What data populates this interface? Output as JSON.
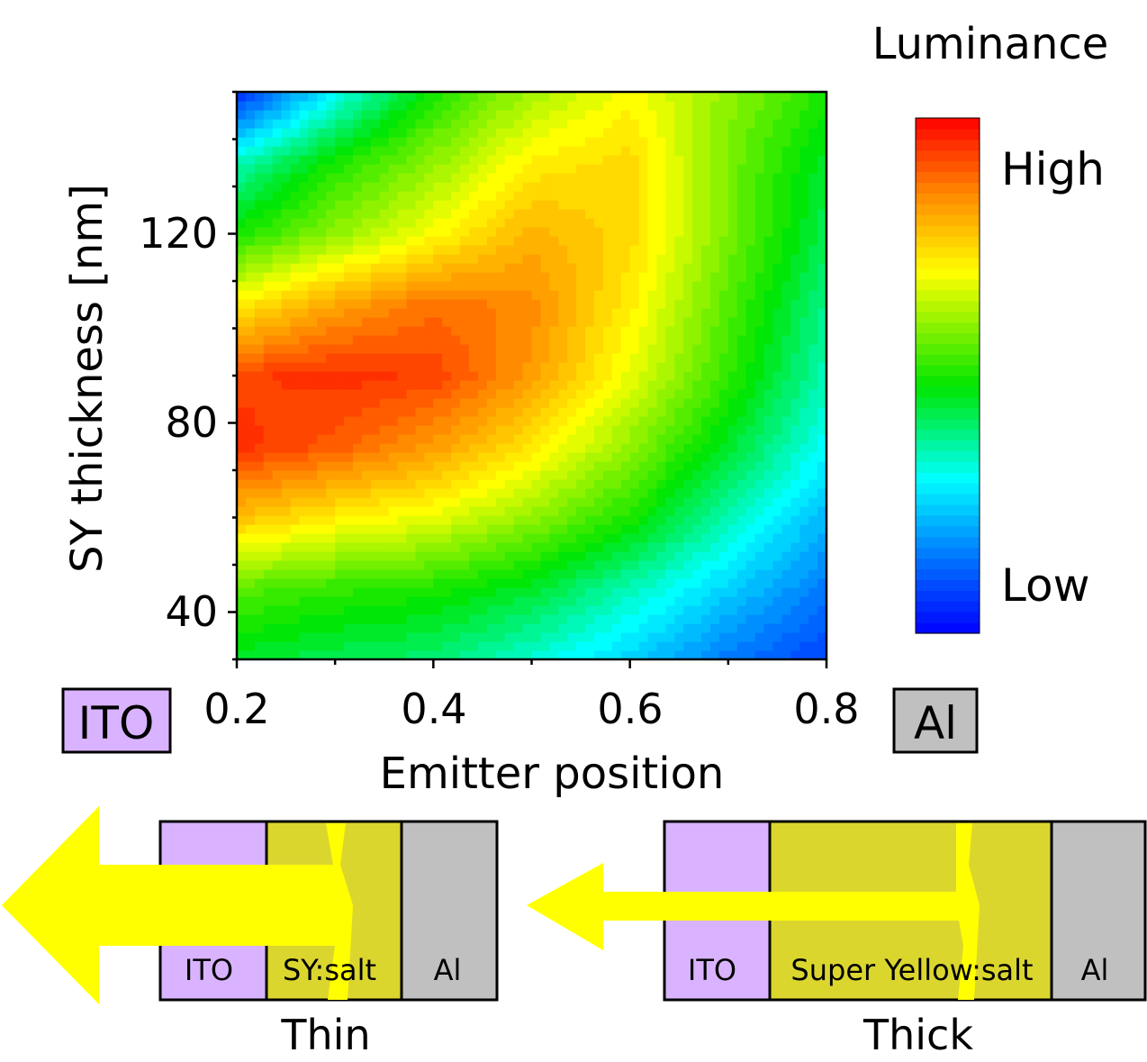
{
  "chart_data": {
    "type": "heatmap",
    "title": "",
    "colorbar_title": "Luminance",
    "colorbar_high": "High",
    "colorbar_low": "Low",
    "xlabel": "Emitter position",
    "ylabel": "SY thickness [nm]",
    "xlim": [
      0.2,
      0.8
    ],
    "ylim": [
      30,
      150
    ],
    "xticks": [
      "0.2",
      "0.4",
      "0.6",
      "0.8"
    ],
    "yticks": [
      "40",
      "80",
      "120"
    ],
    "x": [
      0.2,
      0.3,
      0.4,
      0.5,
      0.6,
      0.7,
      0.8
    ],
    "y": [
      30,
      45,
      60,
      75,
      90,
      105,
      120,
      135,
      150
    ],
    "z_normalized": [
      [
        0.45,
        0.42,
        0.4,
        0.33,
        0.25,
        0.15,
        0.08
      ],
      [
        0.55,
        0.52,
        0.5,
        0.45,
        0.35,
        0.25,
        0.15
      ],
      [
        0.78,
        0.72,
        0.68,
        0.6,
        0.5,
        0.35,
        0.22
      ],
      [
        0.95,
        0.9,
        0.83,
        0.73,
        0.6,
        0.45,
        0.3
      ],
      [
        0.93,
        0.95,
        0.93,
        0.83,
        0.68,
        0.52,
        0.35
      ],
      [
        0.72,
        0.82,
        0.88,
        0.85,
        0.72,
        0.55,
        0.38
      ],
      [
        0.5,
        0.6,
        0.7,
        0.8,
        0.75,
        0.58,
        0.42
      ],
      [
        0.35,
        0.5,
        0.6,
        0.72,
        0.75,
        0.58,
        0.45
      ],
      [
        0.05,
        0.3,
        0.5,
        0.62,
        0.7,
        0.6,
        0.5
      ]
    ],
    "left_electrode": "ITO",
    "right_electrode": "Al"
  },
  "diagrams": {
    "thin": {
      "caption": "Thin",
      "layers": [
        "ITO",
        "SY:salt",
        "Al"
      ]
    },
    "thick": {
      "caption": "Thick",
      "layers": [
        "ITO",
        "Super Yellow:salt",
        "Al"
      ]
    }
  },
  "colors": {
    "ito": "#d9b3ff",
    "al": "#c0c0c0",
    "sy": "#dbd62e",
    "light": "#ffff00"
  }
}
